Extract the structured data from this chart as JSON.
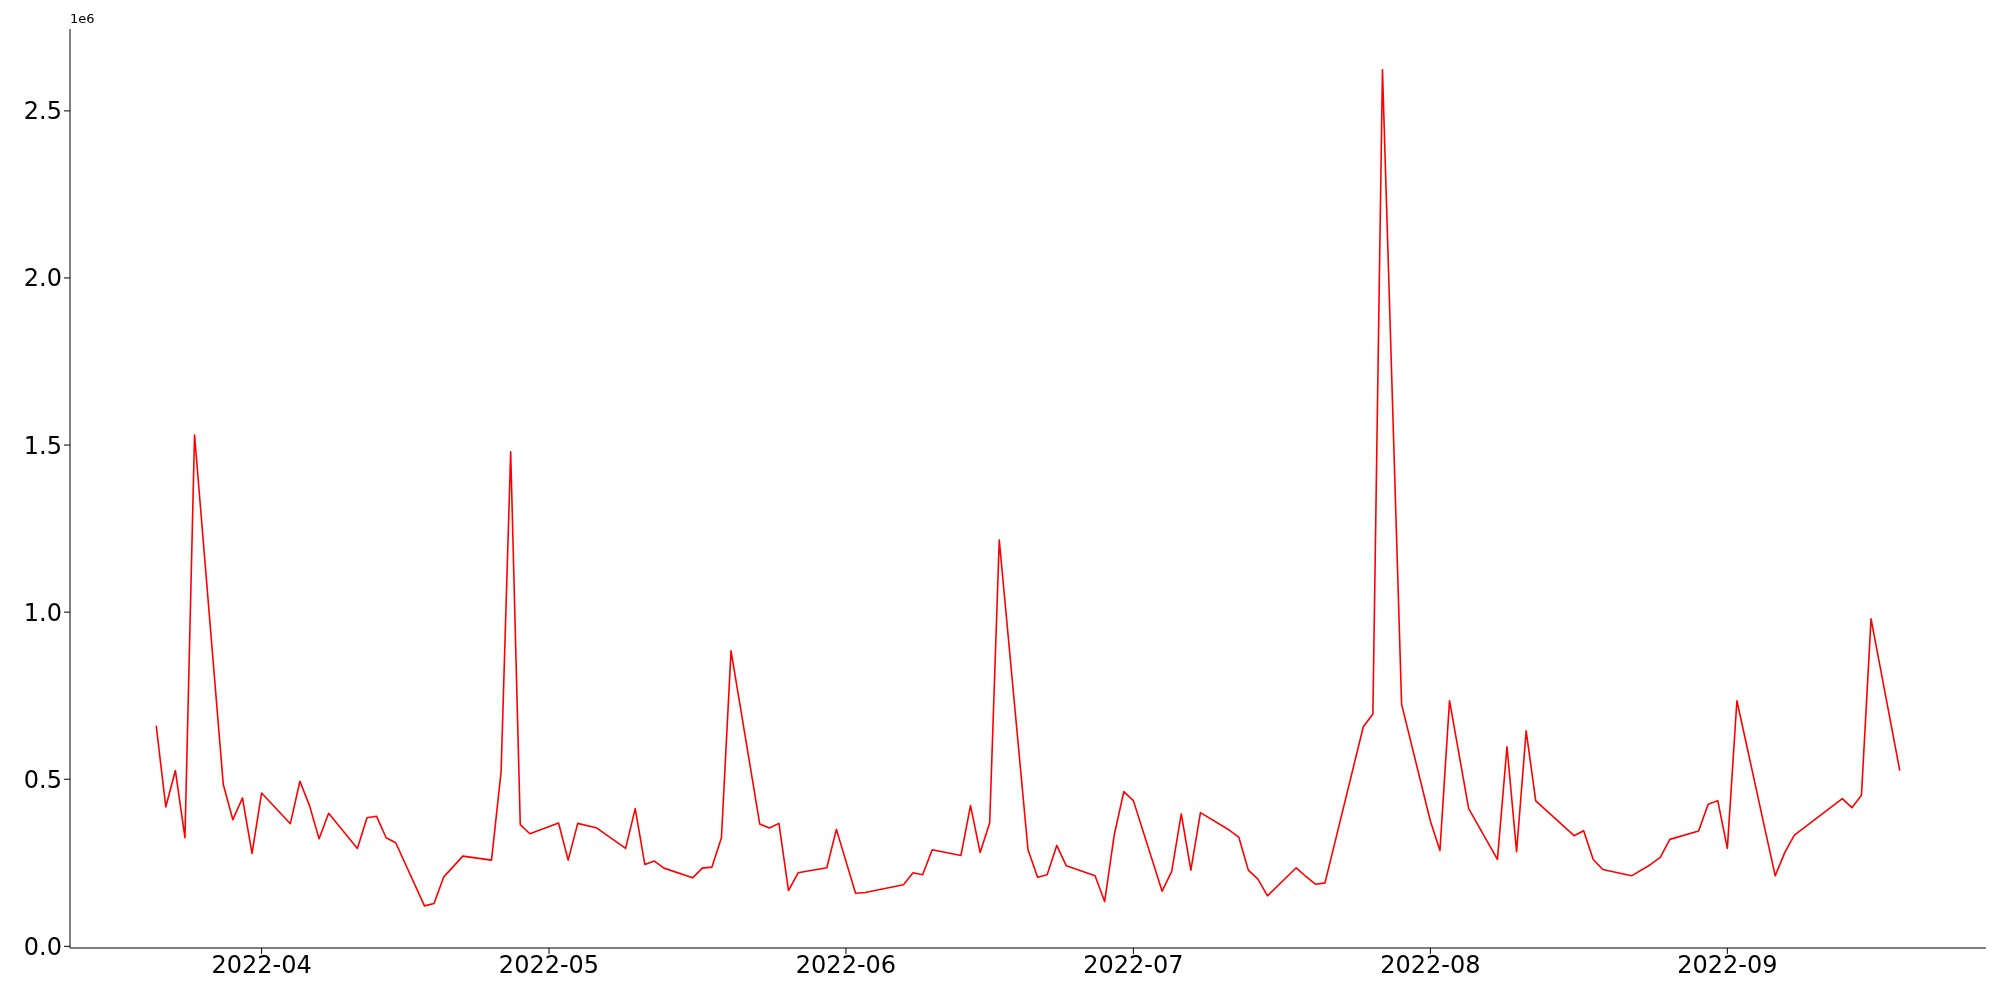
{
  "chart_data": {
    "type": "line",
    "annotations": [
      "1e6"
    ],
    "x": [
      "2022-03-21",
      "2022-03-22",
      "2022-03-23",
      "2022-03-24",
      "2022-03-25",
      "2022-03-28",
      "2022-03-29",
      "2022-03-30",
      "2022-03-31",
      "2022-04-01",
      "2022-04-04",
      "2022-04-05",
      "2022-04-06",
      "2022-04-07",
      "2022-04-08",
      "2022-04-11",
      "2022-04-12",
      "2022-04-13",
      "2022-04-14",
      "2022-04-15",
      "2022-04-18",
      "2022-04-19",
      "2022-04-20",
      "2022-04-22",
      "2022-04-25",
      "2022-04-26",
      "2022-04-27",
      "2022-04-28",
      "2022-04-29",
      "2022-05-02",
      "2022-05-03",
      "2022-05-04",
      "2022-05-06",
      "2022-05-09",
      "2022-05-10",
      "2022-05-11",
      "2022-05-12",
      "2022-05-13",
      "2022-05-16",
      "2022-05-17",
      "2022-05-18",
      "2022-05-19",
      "2022-05-20",
      "2022-05-23",
      "2022-05-24",
      "2022-05-25",
      "2022-05-26",
      "2022-05-27",
      "2022-05-30",
      "2022-05-31",
      "2022-06-02",
      "2022-06-03",
      "2022-06-07",
      "2022-06-08",
      "2022-06-09",
      "2022-06-10",
      "2022-06-13",
      "2022-06-14",
      "2022-06-15",
      "2022-06-16",
      "2022-06-17",
      "2022-06-20",
      "2022-06-21",
      "2022-06-22",
      "2022-06-23",
      "2022-06-24",
      "2022-06-27",
      "2022-06-28",
      "2022-06-29",
      "2022-06-30",
      "2022-07-01",
      "2022-07-04",
      "2022-07-05",
      "2022-07-06",
      "2022-07-07",
      "2022-07-08",
      "2022-07-11",
      "2022-07-12",
      "2022-07-13",
      "2022-07-14",
      "2022-07-15",
      "2022-07-18",
      "2022-07-19",
      "2022-07-20",
      "2022-07-21",
      "2022-07-25",
      "2022-07-26",
      "2022-07-27",
      "2022-07-29",
      "2022-08-01",
      "2022-08-02",
      "2022-08-03",
      "2022-08-05",
      "2022-08-08",
      "2022-08-09",
      "2022-08-10",
      "2022-08-11",
      "2022-08-12",
      "2022-08-16",
      "2022-08-17",
      "2022-08-18",
      "2022-08-19",
      "2022-08-22",
      "2022-08-24",
      "2022-08-25",
      "2022-08-26",
      "2022-08-29",
      "2022-08-30",
      "2022-08-31",
      "2022-09-01",
      "2022-09-02",
      "2022-09-05",
      "2022-09-06",
      "2022-09-07",
      "2022-09-08",
      "2022-09-13",
      "2022-09-14",
      "2022-09-15",
      "2022-09-16",
      "2022-09-19"
    ],
    "values": [
      0.66,
      0.417,
      0.526,
      0.325,
      1.53,
      0.484,
      0.379,
      0.444,
      0.278,
      0.459,
      0.367,
      0.494,
      0.421,
      0.322,
      0.398,
      0.293,
      0.385,
      0.389,
      0.325,
      0.31,
      0.121,
      0.128,
      0.207,
      0.27,
      0.258,
      0.523,
      1.48,
      0.364,
      0.337,
      0.369,
      0.258,
      0.368,
      0.354,
      0.293,
      0.412,
      0.245,
      0.255,
      0.234,
      0.205,
      0.234,
      0.237,
      0.325,
      0.884,
      0.366,
      0.354,
      0.368,
      0.167,
      0.22,
      0.235,
      0.35,
      0.159,
      0.161,
      0.184,
      0.22,
      0.214,
      0.289,
      0.272,
      0.421,
      0.281,
      0.369,
      1.216,
      0.289,
      0.207,
      0.214,
      0.302,
      0.241,
      0.211,
      0.134,
      0.333,
      0.463,
      0.436,
      0.165,
      0.224,
      0.396,
      0.228,
      0.4,
      0.348,
      0.327,
      0.228,
      0.201,
      0.151,
      0.235,
      0.209,
      0.186,
      0.19,
      0.657,
      0.695,
      2.623,
      0.724,
      0.375,
      0.287,
      0.735,
      0.412,
      0.26,
      0.597,
      0.283,
      0.645,
      0.435,
      0.331,
      0.346,
      0.26,
      0.23,
      0.211,
      0.245,
      0.266,
      0.32,
      0.345,
      0.425,
      0.436,
      0.293,
      0.735,
      0.341,
      0.211,
      0.281,
      0.333,
      0.442,
      0.415,
      0.452,
      0.98,
      0.526
    ],
    "color": "#ff0000",
    "xlim": [
      "2022-03-12",
      "2022-09-28"
    ],
    "xticks": [
      {
        "value": "2022-04-01",
        "label": "2022-04"
      },
      {
        "value": "2022-05-01",
        "label": "2022-05"
      },
      {
        "value": "2022-06-01",
        "label": "2022-06"
      },
      {
        "value": "2022-07-01",
        "label": "2022-07"
      },
      {
        "value": "2022-08-01",
        "label": "2022-08"
      },
      {
        "value": "2022-09-01",
        "label": "2022-09"
      }
    ],
    "ylim": [
      -0.005,
      2.745
    ],
    "yticks": [
      {
        "value": 0,
        "label": "0.0"
      },
      {
        "value": 0.5,
        "label": "0.5"
      },
      {
        "value": 1,
        "label": "1.0"
      },
      {
        "value": 1.5,
        "label": "1.5"
      },
      {
        "value": 2,
        "label": "2.0"
      },
      {
        "value": 2.5,
        "label": "2.5"
      }
    ],
    "grid": false,
    "legend": false,
    "marker": "none",
    "line_style": "solid"
  }
}
